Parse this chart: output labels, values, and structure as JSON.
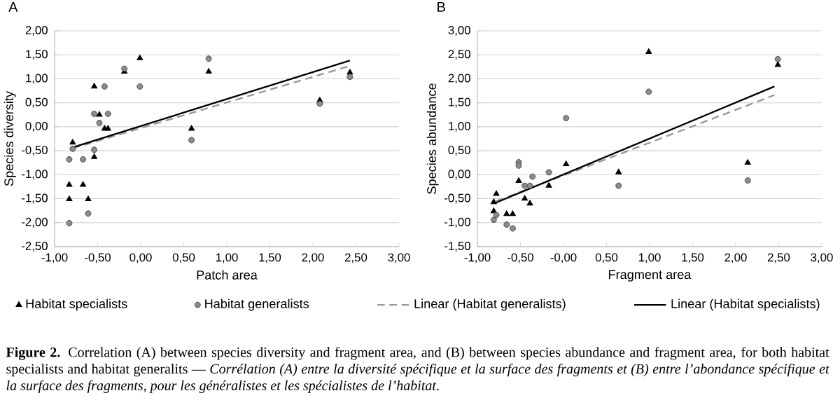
{
  "chart_data": [
    {
      "type": "scatter",
      "title": "A",
      "xlabel": "Patch area",
      "ylabel": "Species diversity",
      "grid": "y",
      "legend": "bottom",
      "xlim": [
        -1,
        3
      ],
      "ylim": [
        -2.5,
        2
      ],
      "xticks": [
        {
          "value": -1,
          "label": "-1,00"
        },
        {
          "value": -0.5,
          "label": "-0,50"
        },
        {
          "value": 0,
          "label": "0,00"
        },
        {
          "value": 0.5,
          "label": "0,50"
        },
        {
          "value": 1,
          "label": "1,00"
        },
        {
          "value": 1.5,
          "label": "1,50"
        },
        {
          "value": 2,
          "label": "2,00"
        },
        {
          "value": 2.5,
          "label": "2,50"
        },
        {
          "value": 3,
          "label": "3,00"
        }
      ],
      "yticks": [
        {
          "value": -2.5,
          "label": "-2,50"
        },
        {
          "value": -2,
          "label": "-2,00"
        },
        {
          "value": -1.5,
          "label": "-1,50"
        },
        {
          "value": -1,
          "label": "-1,00"
        },
        {
          "value": -0.5,
          "label": "-0,50"
        },
        {
          "value": 0,
          "label": "0,00"
        },
        {
          "value": 0.5,
          "label": "0,50"
        },
        {
          "value": 1,
          "label": "1,00"
        },
        {
          "value": 1.5,
          "label": "1,50"
        },
        {
          "value": 2,
          "label": "2,00"
        }
      ],
      "series": [
        {
          "name": "Habitat specialists",
          "marker": "triangle",
          "color": "#000000",
          "x": [
            -0.83,
            -0.83,
            -0.79,
            -0.54,
            -0.54,
            -0.67,
            -0.61,
            -0.48,
            -0.42,
            -0.38,
            -0.19,
            -0.01,
            0.59,
            0.79,
            2.08,
            2.43
          ],
          "values": [
            -1.21,
            -1.51,
            -0.33,
            0.84,
            -0.63,
            -1.21,
            -1.51,
            0.25,
            -0.04,
            -0.04,
            1.15,
            1.43,
            -0.04,
            1.15,
            0.55,
            1.13
          ]
        },
        {
          "name": "Habitat generalists",
          "marker": "circle",
          "color": "#8c8c8c",
          "x": [
            -0.83,
            -0.79,
            -0.83,
            -0.67,
            -0.61,
            -0.54,
            -0.54,
            -0.48,
            -0.42,
            -0.38,
            -0.19,
            -0.01,
            0.59,
            0.79,
            2.08,
            2.43
          ],
          "values": [
            -0.68,
            -0.46,
            -2.01,
            -0.68,
            -1.81,
            0.27,
            -0.48,
            0.08,
            0.84,
            0.27,
            1.21,
            0.84,
            -0.28,
            1.42,
            0.48,
            1.04
          ]
        },
        {
          "name": "Linear (Habitat generalists)",
          "type": "line",
          "marker": "none",
          "line_style": "dashed",
          "color": "#999999",
          "x": [
            -0.79,
            2.43
          ],
          "values": [
            -0.45,
            1.27
          ]
        },
        {
          "name": "Linear (Habitat specialists)",
          "type": "line",
          "marker": "none",
          "line_style": "solid",
          "color": "#000000",
          "x": [
            -0.79,
            2.43
          ],
          "values": [
            -0.43,
            1.38
          ]
        }
      ],
      "annotations": [
        "**Figure 2.** Correlation (A) between species diversity and fragment area, and (B) between species abundance and fragment area, for both habitat specialists and habitat generalits — *Corrélation (A) entre la diversité spécifique et la surface des fragments et (B) entre l’abondance spécifique et la surface des fragments, pour les généralistes et les spécialistes de l’habitat*."
      ]
    },
    {
      "type": "scatter",
      "title": "B",
      "xlabel": "Fragment area",
      "ylabel": "Species abundance",
      "grid": "y",
      "xlim": [
        -1,
        3
      ],
      "ylim": [
        -1.5,
        3
      ],
      "xticks": [
        {
          "value": -1,
          "label": "-1,00"
        },
        {
          "value": -0.5,
          "label": "-0,50"
        },
        {
          "value": 0,
          "label": "-0,00"
        },
        {
          "value": 0.5,
          "label": "0,50"
        },
        {
          "value": 1,
          "label": "1,00"
        },
        {
          "value": 1.5,
          "label": "1,50"
        },
        {
          "value": 2,
          "label": "2,00"
        },
        {
          "value": 2.5,
          "label": "2,50"
        },
        {
          "value": 3,
          "label": "3,00"
        }
      ],
      "yticks": [
        {
          "value": -1.5,
          "label": "-1,50"
        },
        {
          "value": -1,
          "label": "-1,00"
        },
        {
          "value": -0.5,
          "label": "-0,50"
        },
        {
          "value": 0,
          "label": "0,00"
        },
        {
          "value": 0.5,
          "label": "0,50"
        },
        {
          "value": 1,
          "label": "1,00"
        },
        {
          "value": 1.5,
          "label": "1,50"
        },
        {
          "value": 2,
          "label": "2,00"
        },
        {
          "value": 2.5,
          "label": "2,50"
        },
        {
          "value": 3,
          "label": "3,00"
        }
      ],
      "series": [
        {
          "marker": "triangle",
          "color": "#000000",
          "x": [
            -0.78,
            -0.81,
            -0.81,
            -0.66,
            -0.59,
            -0.52,
            -0.45,
            -0.39,
            -0.17,
            0.03,
            0.64,
            0.99,
            2.14,
            2.49
          ],
          "values": [
            -0.4,
            -0.57,
            -0.76,
            -0.82,
            -0.82,
            -0.13,
            -0.5,
            -0.6,
            -0.23,
            0.22,
            0.05,
            2.56,
            0.25,
            2.29
          ]
        },
        {
          "marker": "circle",
          "color": "#8c8c8c",
          "x": [
            -0.81,
            -0.78,
            -0.66,
            -0.59,
            -0.52,
            -0.52,
            -0.45,
            -0.39,
            -0.36,
            -0.17,
            0.03,
            0.64,
            0.99,
            2.14,
            2.49
          ],
          "values": [
            -0.94,
            -0.84,
            -1.04,
            -1.12,
            0.26,
            0.19,
            -0.23,
            -0.23,
            -0.04,
            0.05,
            1.18,
            -0.23,
            1.73,
            -0.12,
            2.41
          ]
        },
        {
          "type": "line",
          "marker": "none",
          "line_style": "dashed",
          "color": "#999999",
          "x": [
            -0.78,
            2.45
          ],
          "values": [
            -0.55,
            1.66
          ]
        },
        {
          "type": "line",
          "marker": "none",
          "line_style": "solid",
          "color": "#000000",
          "x": [
            -0.78,
            2.45
          ],
          "values": [
            -0.58,
            1.84
          ]
        }
      ]
    }
  ]
}
